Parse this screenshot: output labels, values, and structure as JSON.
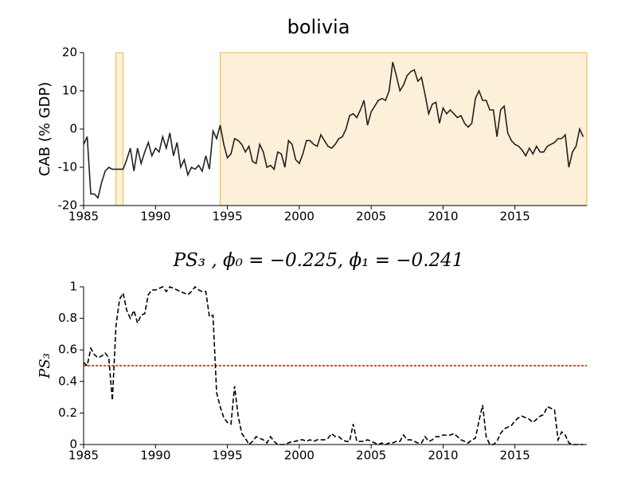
{
  "chart_data": [
    {
      "type": "line",
      "title": "bolivia",
      "ylabel": "CAB (% GDP)",
      "x": [
        1985,
        1985.25,
        1985.5,
        1985.75,
        1986,
        1986.25,
        1986.5,
        1986.75,
        1987,
        1987.25,
        1987.5,
        1987.75,
        1988,
        1988.25,
        1988.5,
        1988.75,
        1989,
        1989.25,
        1989.5,
        1989.75,
        1990,
        1990.25,
        1990.5,
        1990.75,
        1991,
        1991.25,
        1991.5,
        1991.75,
        1992,
        1992.25,
        1992.5,
        1992.75,
        1993,
        1993.25,
        1993.5,
        1993.75,
        1994,
        1994.25,
        1994.5,
        1994.75,
        1995,
        1995.25,
        1995.5,
        1995.75,
        1996,
        1996.25,
        1996.5,
        1996.75,
        1997,
        1997.25,
        1997.5,
        1997.75,
        1998,
        1998.25,
        1998.5,
        1998.75,
        1999,
        1999.25,
        1999.5,
        1999.75,
        2000,
        2000.25,
        2000.5,
        2000.75,
        2001,
        2001.25,
        2001.5,
        2001.75,
        2002,
        2002.25,
        2002.5,
        2002.75,
        2003,
        2003.25,
        2003.5,
        2003.75,
        2004,
        2004.25,
        2004.5,
        2004.75,
        2005,
        2005.25,
        2005.5,
        2005.75,
        2006,
        2006.25,
        2006.5,
        2006.75,
        2007,
        2007.25,
        2007.5,
        2007.75,
        2008,
        2008.25,
        2008.5,
        2008.75,
        2009,
        2009.25,
        2009.5,
        2009.75,
        2010,
        2010.25,
        2010.5,
        2010.75,
        2011,
        2011.25,
        2011.5,
        2011.75,
        2012,
        2012.25,
        2012.5,
        2012.75,
        2013,
        2013.25,
        2013.5,
        2013.75,
        2014,
        2014.25,
        2014.5,
        2014.75,
        2015,
        2015.25,
        2015.5,
        2015.75,
        2016,
        2016.25,
        2016.5,
        2016.75,
        2017,
        2017.25,
        2017.5,
        2017.75,
        2018,
        2018.25,
        2018.5,
        2018.75,
        2019,
        2019.25,
        2019.5,
        2019.75
      ],
      "values": [
        -4,
        -2,
        -17,
        -17,
        -18,
        -14,
        -11,
        -10,
        -10.5,
        -10.5,
        -10.5,
        -10.5,
        -8,
        -5,
        -11,
        -5,
        -9,
        -6,
        -3.5,
        -7,
        -5,
        -6,
        -2,
        -5,
        -1,
        -7,
        -3.5,
        -10,
        -8,
        -12,
        -10,
        -10.5,
        -9.5,
        -11,
        -7,
        -10.5,
        -0.5,
        -2.5,
        1,
        -4,
        -7.5,
        -6.5,
        -2.5,
        -3,
        -4,
        -6,
        -4.5,
        -8.5,
        -9,
        -4,
        -6,
        -10,
        -9.5,
        -10.5,
        -6,
        -6.5,
        -10,
        -3,
        -4,
        -8,
        -9,
        -6.5,
        -3,
        -3,
        -4,
        -4.5,
        -1.5,
        -3,
        -4.5,
        -5,
        -4,
        -2.5,
        -2,
        0,
        3.5,
        4,
        3,
        5,
        7.5,
        1,
        4.5,
        6,
        7.5,
        8,
        7.5,
        10,
        17.5,
        14,
        10,
        11.5,
        14,
        15,
        15.5,
        12.5,
        13.5,
        9,
        4,
        6.5,
        7,
        1.5,
        5.5,
        4,
        5,
        4,
        3,
        3.5,
        1.5,
        0.5,
        1.5,
        8,
        10,
        7.5,
        7.5,
        5,
        5,
        -2,
        5,
        6,
        -1,
        -3,
        -4,
        -4.5,
        -5.5,
        -7,
        -5,
        -6.5,
        -4.5,
        -6,
        -6,
        -4.5,
        -4,
        -3.5,
        -2.5,
        -2.5,
        -1.5,
        -10,
        -6,
        -4.5,
        0,
        -2
      ],
      "color": "#222222",
      "line_style": "solid",
      "shaded_regions": [
        [
          1987.25,
          1987.75
        ],
        [
          1994.5,
          2020
        ]
      ],
      "region_color": "#fdf0d8",
      "region_edge_color": "#e8b84a",
      "xlim": [
        1985,
        2020
      ],
      "xticks": [
        1985,
        1990,
        1995,
        2000,
        2005,
        2010,
        2015
      ],
      "ylim": [
        -20,
        20
      ],
      "yticks": [
        -20,
        -10,
        0,
        10,
        20
      ]
    },
    {
      "type": "line",
      "title": "PS₃ , ϕ₀ = −0.225, ϕ₁ = −0.241",
      "ylabel": "PS₃",
      "x": [
        1985,
        1985.25,
        1985.5,
        1985.75,
        1986,
        1986.25,
        1986.5,
        1986.75,
        1987,
        1987.25,
        1987.5,
        1987.75,
        1988,
        1988.25,
        1988.5,
        1988.75,
        1989,
        1989.25,
        1989.5,
        1989.75,
        1990,
        1990.25,
        1990.5,
        1990.75,
        1991,
        1991.25,
        1991.5,
        1991.75,
        1992,
        1992.25,
        1992.5,
        1992.75,
        1993,
        1993.25,
        1993.5,
        1993.75,
        1994,
        1994.25,
        1994.5,
        1994.75,
        1995,
        1995.25,
        1995.5,
        1995.75,
        1996,
        1996.25,
        1996.5,
        1996.75,
        1997,
        1997.25,
        1997.5,
        1997.75,
        1998,
        1998.25,
        1998.5,
        1998.75,
        1999,
        1999.25,
        1999.5,
        1999.75,
        2000,
        2000.25,
        2000.5,
        2000.75,
        2001,
        2001.25,
        2001.5,
        2001.75,
        2002,
        2002.25,
        2002.5,
        2002.75,
        2003,
        2003.25,
        2003.5,
        2003.75,
        2004,
        2004.25,
        2004.5,
        2004.75,
        2005,
        2005.25,
        2005.5,
        2005.75,
        2006,
        2006.25,
        2006.5,
        2006.75,
        2007,
        2007.25,
        2007.5,
        2007.75,
        2008,
        2008.25,
        2008.5,
        2008.75,
        2009,
        2009.25,
        2009.5,
        2009.75,
        2010,
        2010.25,
        2010.5,
        2010.75,
        2011,
        2011.25,
        2011.5,
        2011.75,
        2012,
        2012.25,
        2012.5,
        2012.75,
        2013,
        2013.25,
        2013.5,
        2013.75,
        2014,
        2014.25,
        2014.5,
        2014.75,
        2015,
        2015.25,
        2015.5,
        2015.75,
        2016,
        2016.25,
        2016.5,
        2016.75,
        2017,
        2017.25,
        2017.5,
        2017.75,
        2018,
        2018.25,
        2018.5,
        2018.75,
        2019,
        2019.25,
        2019.5,
        2019.75
      ],
      "values": [
        0.52,
        0.5,
        0.61,
        0.57,
        0.55,
        0.56,
        0.58,
        0.55,
        0.28,
        0.75,
        0.92,
        0.96,
        0.85,
        0.8,
        0.85,
        0.77,
        0.82,
        0.83,
        0.95,
        0.98,
        0.98,
        0.99,
        1,
        0.97,
        1,
        0.99,
        0.98,
        0.97,
        0.96,
        0.95,
        0.97,
        1,
        0.98,
        0.97,
        0.97,
        0.81,
        0.82,
        0.33,
        0.24,
        0.17,
        0.14,
        0.13,
        0.37,
        0.18,
        0.07,
        0.04,
        0,
        0.02,
        0.05,
        0.04,
        0.03,
        0.01,
        0.05,
        0.02,
        0,
        0,
        0,
        0.01,
        0.02,
        0.02,
        0.03,
        0.03,
        0.02,
        0.03,
        0.02,
        0.03,
        0.03,
        0.03,
        0.04,
        0.07,
        0.05,
        0.05,
        0.03,
        0.02,
        0.02,
        0.13,
        0.02,
        0.02,
        0.02,
        0.03,
        0.02,
        0.01,
        0,
        0.01,
        0,
        0.01,
        0.01,
        0.02,
        0.02,
        0.06,
        0.03,
        0.03,
        0.02,
        0.01,
        0.01,
        0.05,
        0.02,
        0.03,
        0.05,
        0.05,
        0.06,
        0.06,
        0.06,
        0.07,
        0.05,
        0.03,
        0.02,
        0.01,
        0.03,
        0.04,
        0.15,
        0.25,
        0.05,
        0,
        0,
        0.02,
        0.07,
        0.1,
        0.11,
        0.12,
        0.15,
        0.17,
        0.18,
        0.17,
        0.16,
        0.14,
        0.16,
        0.18,
        0.19,
        0.24,
        0.23,
        0.22,
        0.03,
        0.08,
        0.06,
        0.01,
        0,
        0,
        0,
        0
      ],
      "color": "#000000",
      "line_style": "dashed",
      "threshold": 0.5,
      "threshold_color": "#dd0000",
      "xlim": [
        1985,
        2020
      ],
      "xticks": [
        1985,
        1990,
        1995,
        2000,
        2005,
        2010,
        2015
      ],
      "ylim": [
        0,
        1
      ],
      "yticks": [
        0,
        0.2,
        0.4,
        0.6,
        0.8,
        1
      ]
    }
  ]
}
